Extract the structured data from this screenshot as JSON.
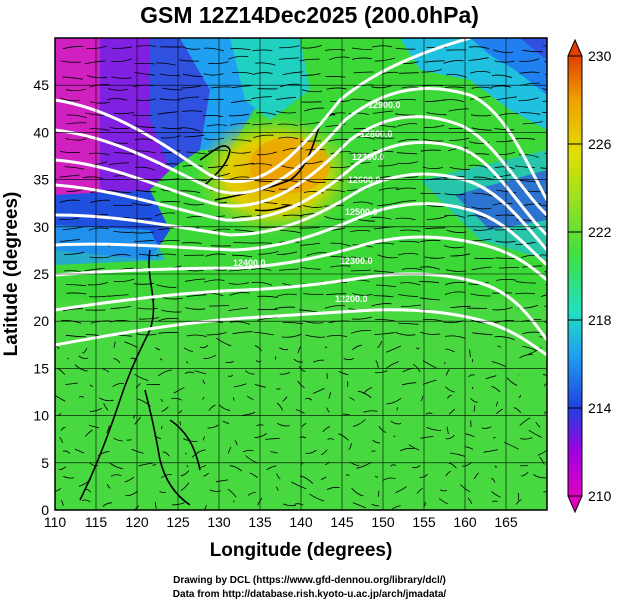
{
  "title": "GSM 12Z14Dec2025 (200.0hPa)",
  "xlabel": "Longitude (degrees)",
  "ylabel": "Latitude  (degrees)",
  "x_ticks": [
    "110",
    "115",
    "120",
    "125",
    "130",
    "135",
    "140",
    "145",
    "150",
    "155",
    "160",
    "165"
  ],
  "y_ticks": [
    "0",
    "5",
    "10",
    "15",
    "20",
    "25",
    "30",
    "35",
    "40",
    "45"
  ],
  "colorbar": {
    "ticks": [
      "210",
      "214",
      "218",
      "222",
      "226",
      "230"
    ],
    "colors": [
      "#e000c0",
      "#a000e0",
      "#2040e0",
      "#20a0f0",
      "#20e0c0",
      "#40e040",
      "#a0e020",
      "#e0e000",
      "#f0a000",
      "#e04000"
    ]
  },
  "contour_labels": [
    "12900.0",
    "12800.0",
    "12700.0",
    "12600.0",
    "12500.0",
    "12400.0",
    "12300.0",
    "12200.0"
  ],
  "credits": [
    "Drawing by DCL (https://www.gfd-dennou.org/library/dcl/)",
    "Data from http://database.rish.kyoto-u.ac.jp/arch/jmadata/"
  ],
  "chart_data": {
    "type": "heatmap",
    "title": "GSM 12Z14Dec2025 (200.0hPa)",
    "xlabel": "Longitude (degrees)",
    "ylabel": "Latitude  (degrees)",
    "xlim": [
      110,
      170
    ],
    "ylim": [
      0,
      50
    ],
    "clim": [
      210,
      230
    ],
    "field": "temperature with geopotential height contours and streamlines",
    "contour_levels": [
      12200,
      12300,
      12400,
      12500,
      12600,
      12700,
      12800,
      12900
    ]
  }
}
